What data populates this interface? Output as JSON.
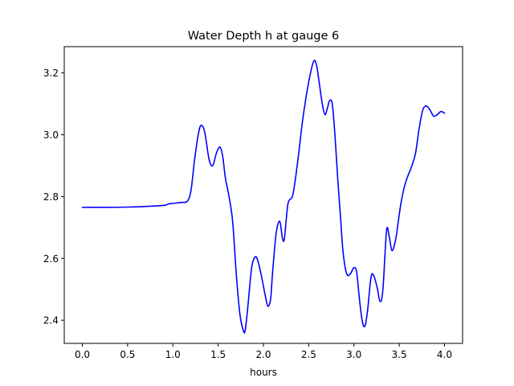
{
  "chart_data": {
    "type": "line",
    "title": "Water Depth h at gauge 6",
    "xlabel": "hours",
    "ylabel": "",
    "xlim": [
      -0.2,
      4.2
    ],
    "ylim": [
      2.325,
      3.285
    ],
    "xticks": [
      0.0,
      0.5,
      1.0,
      1.5,
      2.0,
      2.5,
      3.0,
      3.5,
      4.0
    ],
    "xtick_labels": [
      "0.0",
      "0.5",
      "1.0",
      "1.5",
      "2.0",
      "2.5",
      "3.0",
      "3.5",
      "4.0"
    ],
    "yticks": [
      2.4,
      2.6,
      2.8,
      3.0,
      3.2
    ],
    "ytick_labels": [
      "2.4",
      "2.6",
      "2.8",
      "3.0",
      "3.2"
    ],
    "grid": false,
    "series": [
      {
        "name": "",
        "color": "#0000ff",
        "x": [
          0.0,
          0.5,
          0.88,
          0.95,
          1.0,
          1.1,
          1.16,
          1.2,
          1.24,
          1.28,
          1.31,
          1.35,
          1.4,
          1.44,
          1.48,
          1.52,
          1.55,
          1.58,
          1.62,
          1.66,
          1.7,
          1.74,
          1.78,
          1.8,
          1.83,
          1.87,
          1.91,
          1.94,
          1.98,
          2.02,
          2.05,
          2.08,
          2.1,
          2.14,
          2.18,
          2.21,
          2.23,
          2.25,
          2.27,
          2.29,
          2.32,
          2.35,
          2.39,
          2.43,
          2.47,
          2.52,
          2.56,
          2.59,
          2.62,
          2.65,
          2.68,
          2.71,
          2.73,
          2.76,
          2.79,
          2.82,
          2.85,
          2.88,
          2.92,
          2.96,
          3.0,
          3.03,
          3.06,
          3.09,
          3.12,
          3.15,
          3.18,
          3.2,
          3.23,
          3.26,
          3.29,
          3.32,
          3.36,
          3.39,
          3.42,
          3.46,
          3.49,
          3.52,
          3.56,
          3.6,
          3.64,
          3.68,
          3.72,
          3.76,
          3.8,
          3.84,
          3.88,
          3.92,
          3.96,
          4.0
        ],
        "y": [
          2.765,
          2.766,
          2.771,
          2.776,
          2.778,
          2.781,
          2.785,
          2.82,
          2.92,
          3.0,
          3.03,
          3.01,
          2.92,
          2.9,
          2.94,
          2.96,
          2.93,
          2.86,
          2.8,
          2.72,
          2.55,
          2.42,
          2.365,
          2.37,
          2.45,
          2.57,
          2.605,
          2.59,
          2.54,
          2.48,
          2.445,
          2.47,
          2.55,
          2.68,
          2.72,
          2.665,
          2.66,
          2.72,
          2.775,
          2.79,
          2.8,
          2.85,
          2.94,
          3.04,
          3.12,
          3.2,
          3.24,
          3.22,
          3.16,
          3.1,
          3.065,
          3.09,
          3.11,
          3.1,
          3.0,
          2.86,
          2.74,
          2.62,
          2.55,
          2.55,
          2.57,
          2.555,
          2.47,
          2.4,
          2.38,
          2.43,
          2.52,
          2.55,
          2.535,
          2.5,
          2.46,
          2.5,
          2.69,
          2.67,
          2.625,
          2.66,
          2.72,
          2.78,
          2.835,
          2.87,
          2.9,
          2.94,
          3.02,
          3.08,
          3.093,
          3.08,
          3.06,
          3.065,
          3.075,
          3.07
        ]
      }
    ]
  }
}
